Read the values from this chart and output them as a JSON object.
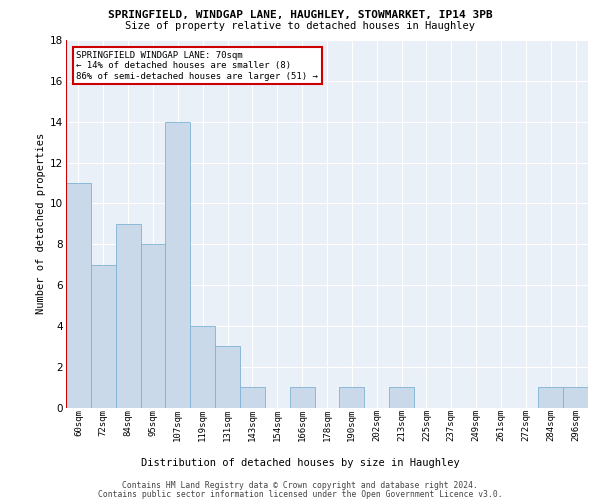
{
  "title": "SPRINGFIELD, WINDGAP LANE, HAUGHLEY, STOWMARKET, IP14 3PB",
  "subtitle": "Size of property relative to detached houses in Haughley",
  "xlabel_bottom": "Distribution of detached houses by size in Haughley",
  "ylabel": "Number of detached properties",
  "bar_color": "#c9d9ea",
  "bar_edge_color": "#7fb3d3",
  "vline_color": "#cc0000",
  "annotation_text": "SPRINGFIELD WINDGAP LANE: 70sqm\n← 14% of detached houses are smaller (8)\n86% of semi-detached houses are larger (51) →",
  "categories": [
    "60sqm",
    "72sqm",
    "84sqm",
    "95sqm",
    "107sqm",
    "119sqm",
    "131sqm",
    "143sqm",
    "154sqm",
    "166sqm",
    "178sqm",
    "190sqm",
    "202sqm",
    "213sqm",
    "225sqm",
    "237sqm",
    "249sqm",
    "261sqm",
    "272sqm",
    "284sqm",
    "296sqm"
  ],
  "values": [
    11,
    7,
    9,
    8,
    14,
    4,
    3,
    1,
    0,
    1,
    0,
    1,
    0,
    1,
    0,
    0,
    0,
    0,
    0,
    1,
    1
  ],
  "ylim": [
    0,
    18
  ],
  "yticks": [
    0,
    2,
    4,
    6,
    8,
    10,
    12,
    14,
    16,
    18
  ],
  "bg_color": "#eaf0f8",
  "grid_color": "#ffffff",
  "footer_line1": "Contains HM Land Registry data © Crown copyright and database right 2024.",
  "footer_line2": "Contains public sector information licensed under the Open Government Licence v3.0.",
  "annotation_box_color": "#ffffff",
  "annotation_box_edge_color": "#cc0000"
}
